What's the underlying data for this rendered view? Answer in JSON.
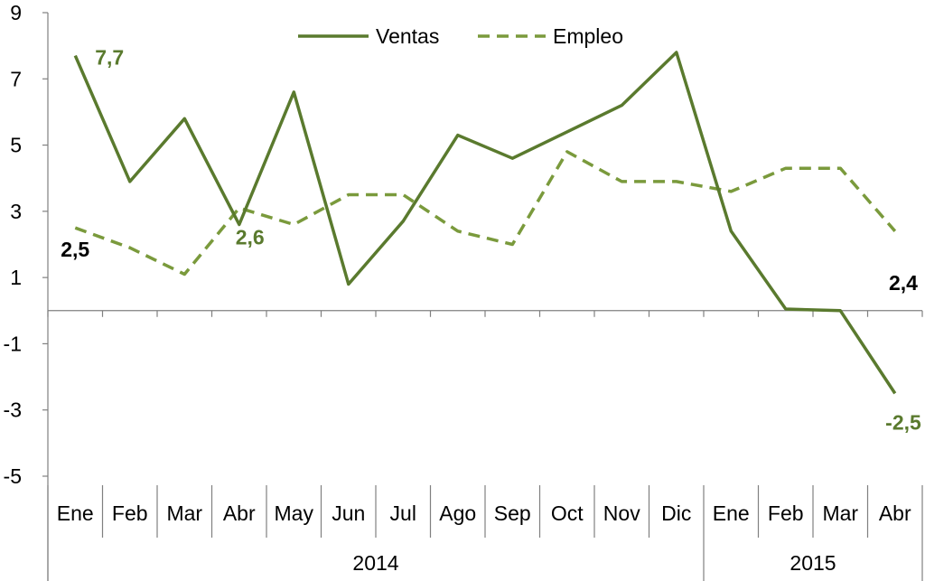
{
  "chart_data": {
    "type": "line",
    "categories": [
      "Ene",
      "Feb",
      "Mar",
      "Abr",
      "May",
      "Jun",
      "Jul",
      "Ago",
      "Sep",
      "Oct",
      "Nov",
      "Dic",
      "Ene",
      "Feb",
      "Mar",
      "Abr"
    ],
    "groups": [
      {
        "label": "2014",
        "start": 0,
        "end": 11
      },
      {
        "label": "2015",
        "start": 12,
        "end": 15
      }
    ],
    "series": [
      {
        "name": "Ventas",
        "style": "solid",
        "color": "#5a7a2e",
        "values": [
          7.7,
          3.9,
          5.8,
          2.6,
          6.6,
          0.8,
          2.7,
          5.3,
          4.6,
          5.4,
          6.2,
          7.8,
          2.4,
          0.05,
          0.0,
          -2.5
        ]
      },
      {
        "name": "Empleo",
        "style": "dashed",
        "color": "#7a9a3c",
        "values": [
          2.5,
          1.9,
          1.1,
          3.1,
          2.6,
          3.5,
          3.5,
          2.4,
          2.0,
          4.8,
          3.9,
          3.9,
          3.6,
          4.3,
          4.3,
          2.4
        ]
      }
    ],
    "ylim": [
      -5,
      9
    ],
    "yticks": [
      9,
      7,
      5,
      3,
      1,
      -1,
      -3,
      -5
    ],
    "data_labels": [
      {
        "text": "7,7",
        "series": 0,
        "index": 0,
        "color": "#5a7a2e"
      },
      {
        "text": "2,5",
        "series": 1,
        "index": 0,
        "color": "#000000"
      },
      {
        "text": "2,6",
        "series": 0,
        "index": 3,
        "color": "#5a7a2e"
      },
      {
        "text": "2,4",
        "series": 1,
        "index": 15,
        "color": "#000000"
      },
      {
        "text": "-2,5",
        "series": 0,
        "index": 15,
        "color": "#5a7a2e"
      }
    ],
    "legend_position": "top-center",
    "grid": false
  }
}
